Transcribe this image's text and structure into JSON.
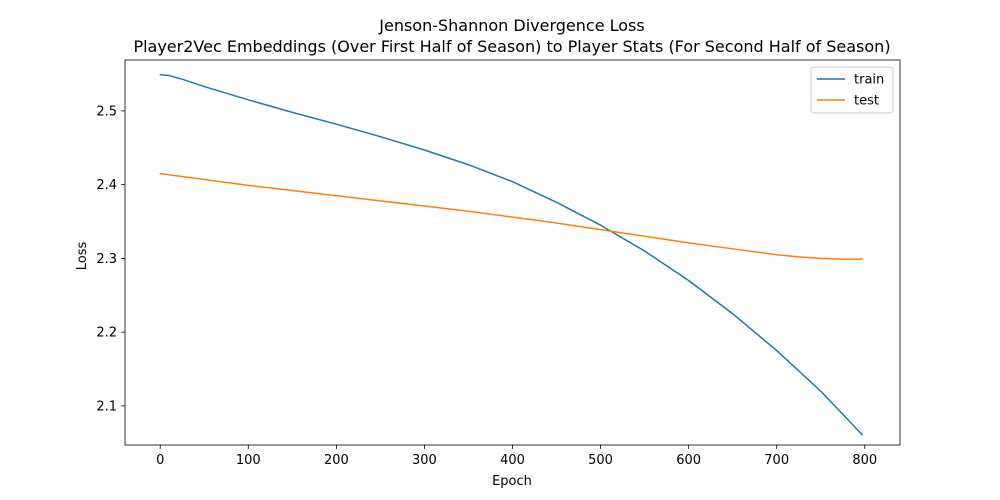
{
  "chart_data": {
    "type": "line",
    "title": "Jenson-Shannon Divergence Loss",
    "subtitle": "Player2Vec Embeddings (Over First Half of Season) to Player Stats (For Second Half of Season)",
    "xlabel": "Epoch",
    "ylabel": "Loss",
    "xlim": [
      -40,
      840
    ],
    "ylim": [
      2.047,
      2.569
    ],
    "xticks": [
      0,
      100,
      200,
      300,
      400,
      500,
      600,
      700,
      800
    ],
    "xtick_labels": [
      "0",
      "100",
      "200",
      "300",
      "400",
      "500",
      "600",
      "700",
      "800"
    ],
    "yticks": [
      2.1,
      2.2,
      2.3,
      2.4,
      2.5
    ],
    "ytick_labels": [
      "2.1",
      "2.2",
      "2.3",
      "2.4",
      "2.5"
    ],
    "grid": false,
    "legend_position": "upper right",
    "series": [
      {
        "name": "train",
        "color": "#1f77b4",
        "x": [
          0,
          10,
          25,
          50,
          100,
          150,
          200,
          250,
          300,
          350,
          400,
          450,
          500,
          550,
          600,
          650,
          700,
          750,
          797
        ],
        "y": [
          2.549,
          2.548,
          2.543,
          2.533,
          2.515,
          2.498,
          2.482,
          2.465,
          2.447,
          2.427,
          2.404,
          2.376,
          2.345,
          2.31,
          2.27,
          2.225,
          2.175,
          2.12,
          2.061
        ]
      },
      {
        "name": "test",
        "color": "#ff7f0e",
        "x": [
          0,
          50,
          100,
          150,
          200,
          250,
          300,
          350,
          400,
          450,
          500,
          550,
          600,
          650,
          700,
          725,
          750,
          775,
          797
        ],
        "y": [
          2.415,
          2.407,
          2.399,
          2.392,
          2.385,
          2.378,
          2.371,
          2.364,
          2.356,
          2.348,
          2.339,
          2.33,
          2.321,
          2.313,
          2.305,
          2.302,
          2.3,
          2.299,
          2.299
        ]
      }
    ]
  }
}
